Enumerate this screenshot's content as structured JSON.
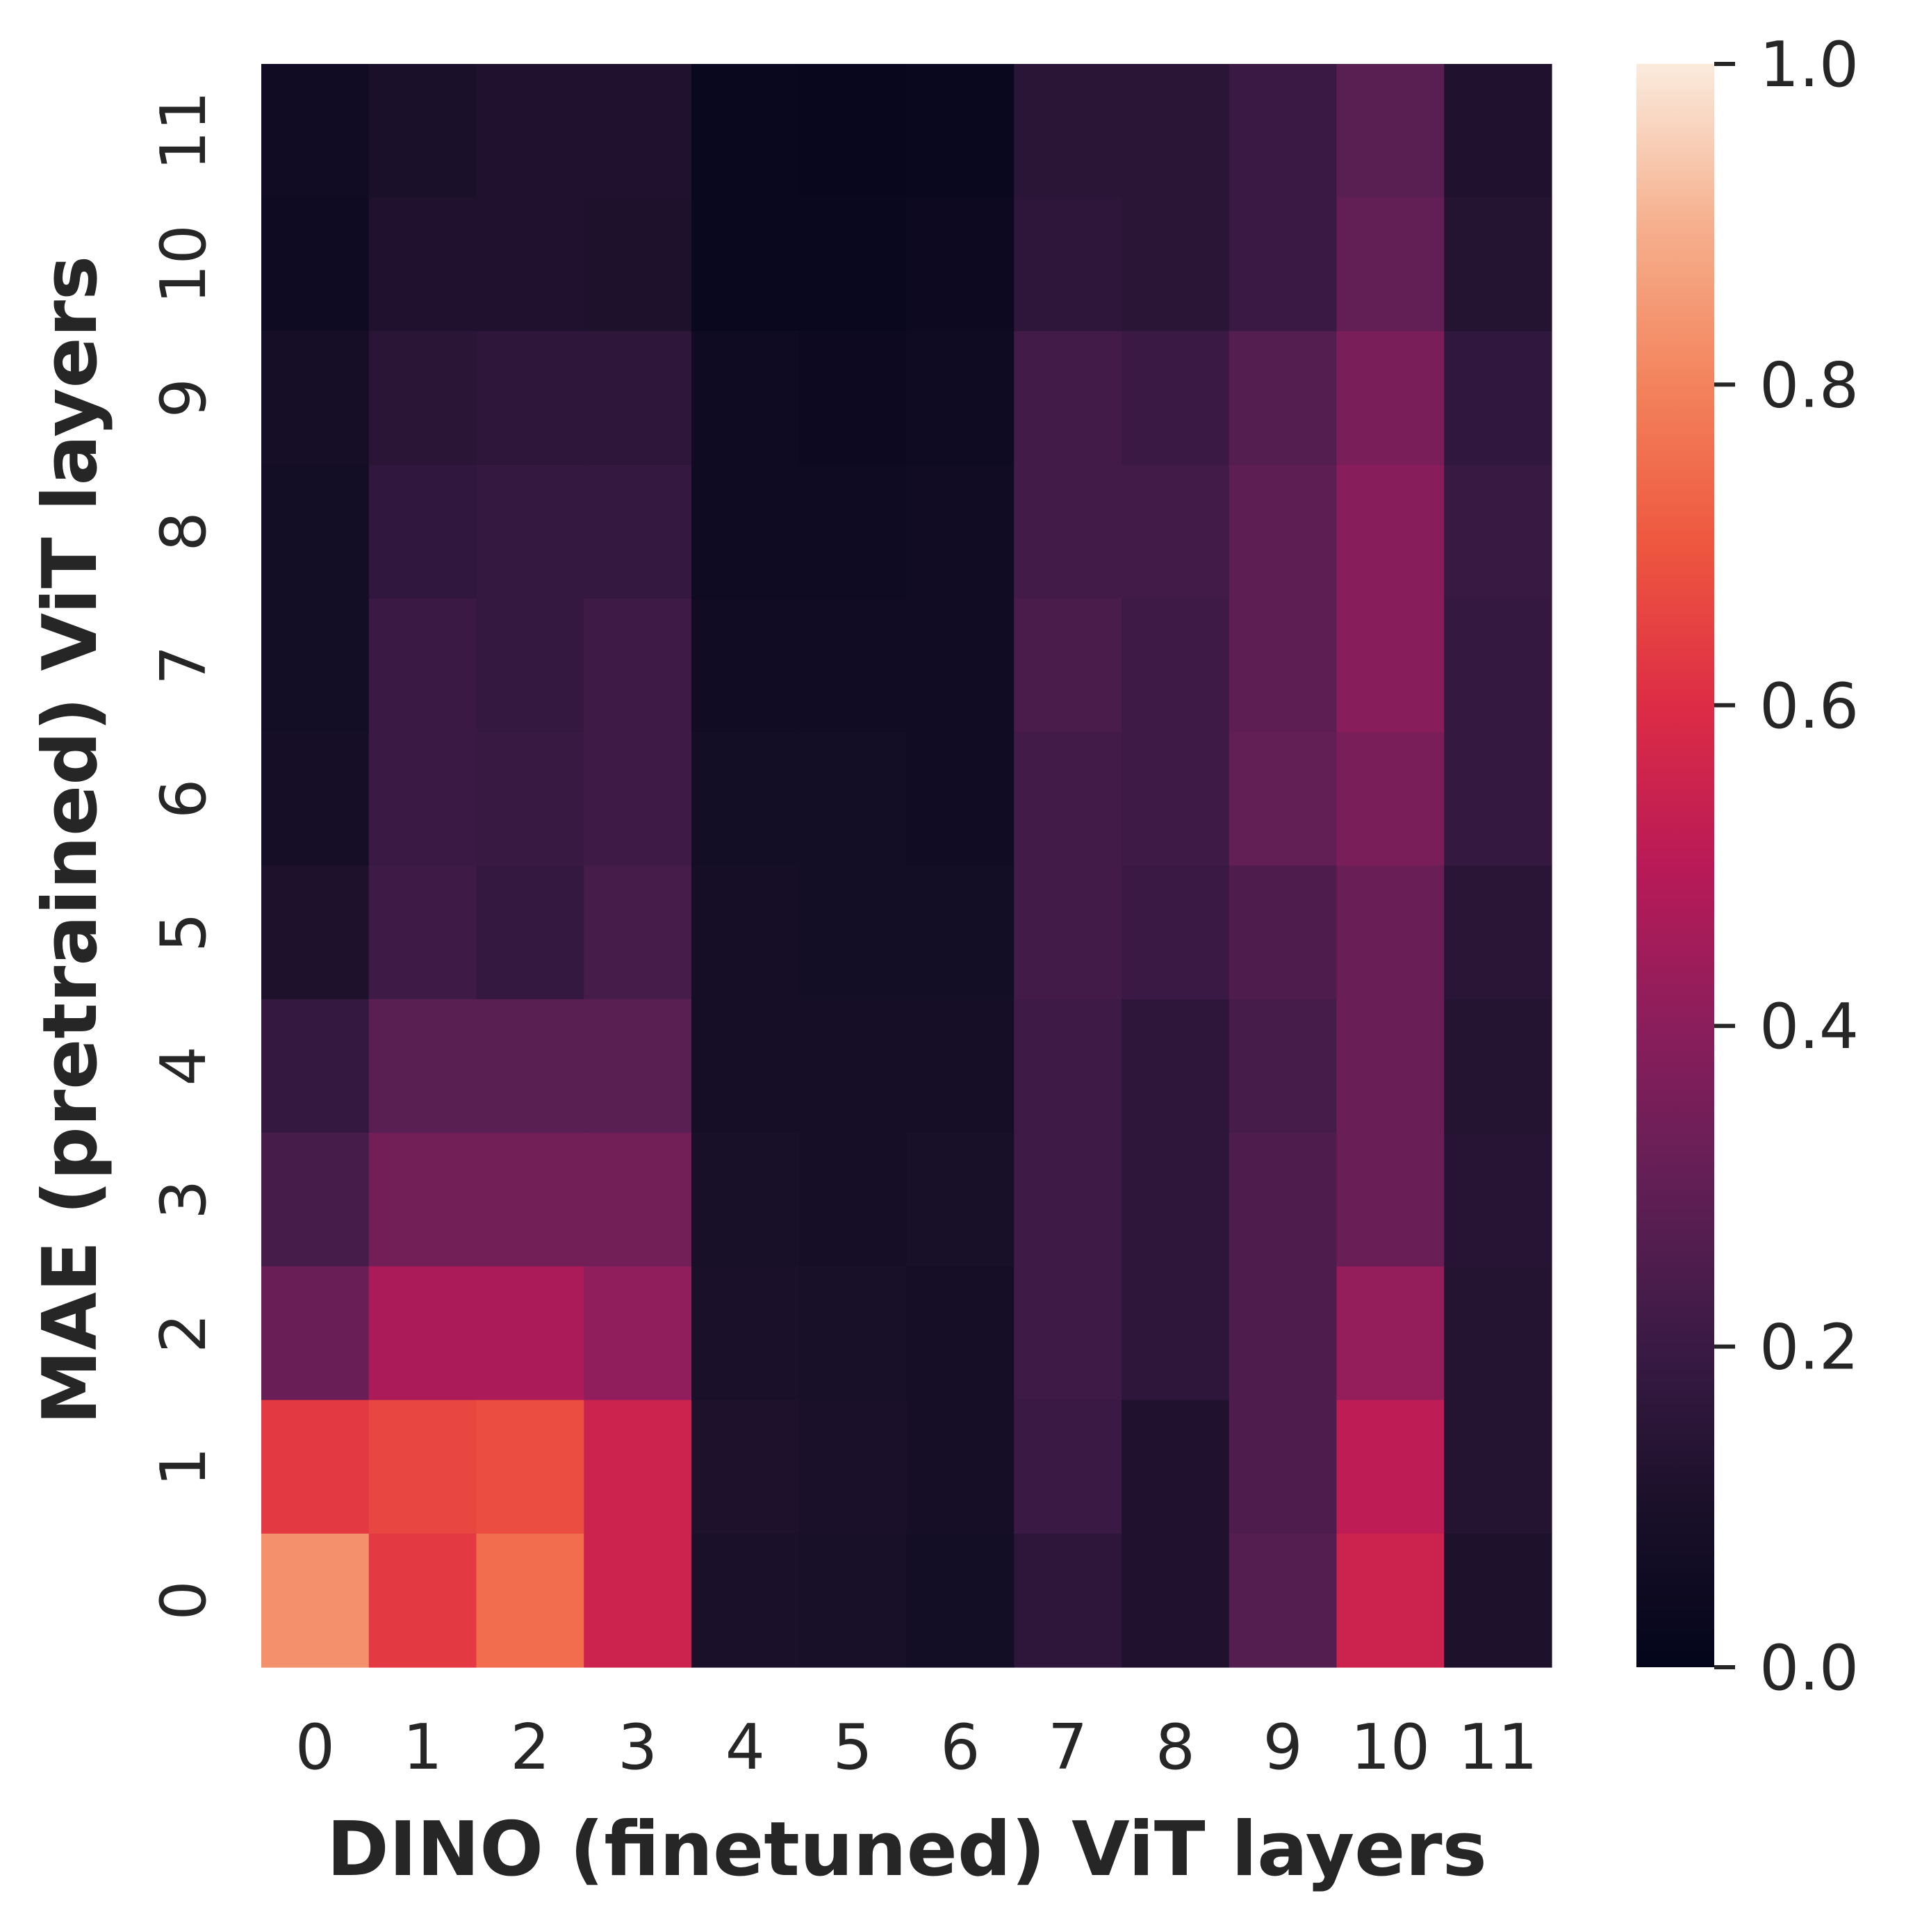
{
  "chart_data": {
    "type": "heatmap",
    "title": "",
    "xlabel": "DINO (finetuned) ViT layers",
    "ylabel": "MAE (pretrained) ViT layers",
    "x_ticks": [
      "0",
      "1",
      "2",
      "3",
      "4",
      "5",
      "6",
      "7",
      "8",
      "9",
      "10",
      "11"
    ],
    "y_ticks": [
      "0",
      "1",
      "2",
      "3",
      "4",
      "5",
      "6",
      "7",
      "8",
      "9",
      "10",
      "11"
    ],
    "colorbar": {
      "range": [
        0.0,
        1.0
      ],
      "ticks": [
        "0.0",
        "0.2",
        "0.4",
        "0.6",
        "0.8",
        "1.0"
      ],
      "colormap": "rocket"
    },
    "rows": [
      {
        "y": "11",
        "values": [
          0.06,
          0.1,
          0.12,
          0.12,
          0.03,
          0.02,
          0.03,
          0.15,
          0.15,
          0.2,
          0.28,
          0.12
        ]
      },
      {
        "y": "10",
        "values": [
          0.05,
          0.12,
          0.12,
          0.11,
          0.03,
          0.03,
          0.04,
          0.16,
          0.15,
          0.2,
          0.3,
          0.13
        ]
      },
      {
        "y": "9",
        "values": [
          0.08,
          0.15,
          0.16,
          0.16,
          0.05,
          0.04,
          0.05,
          0.22,
          0.2,
          0.27,
          0.36,
          0.17
        ]
      },
      {
        "y": "8",
        "values": [
          0.07,
          0.17,
          0.18,
          0.18,
          0.05,
          0.05,
          0.06,
          0.22,
          0.22,
          0.29,
          0.39,
          0.19
        ]
      },
      {
        "y": "7",
        "values": [
          0.07,
          0.2,
          0.18,
          0.21,
          0.06,
          0.06,
          0.06,
          0.24,
          0.21,
          0.29,
          0.39,
          0.18
        ]
      },
      {
        "y": "6",
        "values": [
          0.08,
          0.2,
          0.19,
          0.21,
          0.07,
          0.07,
          0.06,
          0.22,
          0.21,
          0.3,
          0.36,
          0.18
        ]
      },
      {
        "y": "5",
        "values": [
          0.11,
          0.21,
          0.18,
          0.23,
          0.08,
          0.07,
          0.07,
          0.22,
          0.2,
          0.25,
          0.32,
          0.15
        ]
      },
      {
        "y": "4",
        "values": [
          0.18,
          0.28,
          0.28,
          0.28,
          0.08,
          0.08,
          0.08,
          0.21,
          0.16,
          0.23,
          0.32,
          0.13
        ]
      },
      {
        "y": "3",
        "values": [
          0.23,
          0.34,
          0.34,
          0.34,
          0.09,
          0.08,
          0.09,
          0.21,
          0.16,
          0.25,
          0.32,
          0.14
        ]
      },
      {
        "y": "2",
        "values": [
          0.32,
          0.47,
          0.47,
          0.41,
          0.1,
          0.09,
          0.08,
          0.21,
          0.16,
          0.25,
          0.42,
          0.13
        ]
      },
      {
        "y": "1",
        "values": [
          0.63,
          0.66,
          0.68,
          0.55,
          0.11,
          0.1,
          0.08,
          0.2,
          0.12,
          0.25,
          0.51,
          0.13
        ]
      },
      {
        "y": "0",
        "values": [
          0.83,
          0.63,
          0.75,
          0.55,
          0.1,
          0.09,
          0.07,
          0.16,
          0.12,
          0.27,
          0.55,
          0.11
        ]
      }
    ]
  }
}
